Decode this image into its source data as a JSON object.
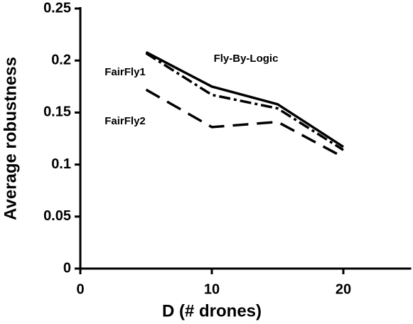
{
  "chart_data": {
    "type": "line",
    "x_label": "D (# drones)",
    "y_label": "Average robustness",
    "xlim": [
      0,
      25
    ],
    "xticks": [
      0,
      10,
      20
    ],
    "ylim": [
      0,
      0.25
    ],
    "yticks": [
      0,
      0.05,
      0.1,
      0.15,
      0.2,
      0.25
    ],
    "x": [
      5,
      10,
      15,
      20
    ],
    "series": [
      {
        "name": "Fly-By-Logic",
        "color": "#000000",
        "line_style": "solid",
        "values": [
          0.208,
          0.175,
          0.158,
          0.117
        ]
      },
      {
        "name": "FairFly1",
        "color": "#000000",
        "line_style": "dashdot",
        "values": [
          0.207,
          0.167,
          0.154,
          0.114
        ]
      },
      {
        "name": "FairFly2",
        "color": "#000000",
        "line_style": "dashed",
        "values": [
          0.172,
          0.136,
          0.141,
          0.107
        ]
      }
    ]
  }
}
